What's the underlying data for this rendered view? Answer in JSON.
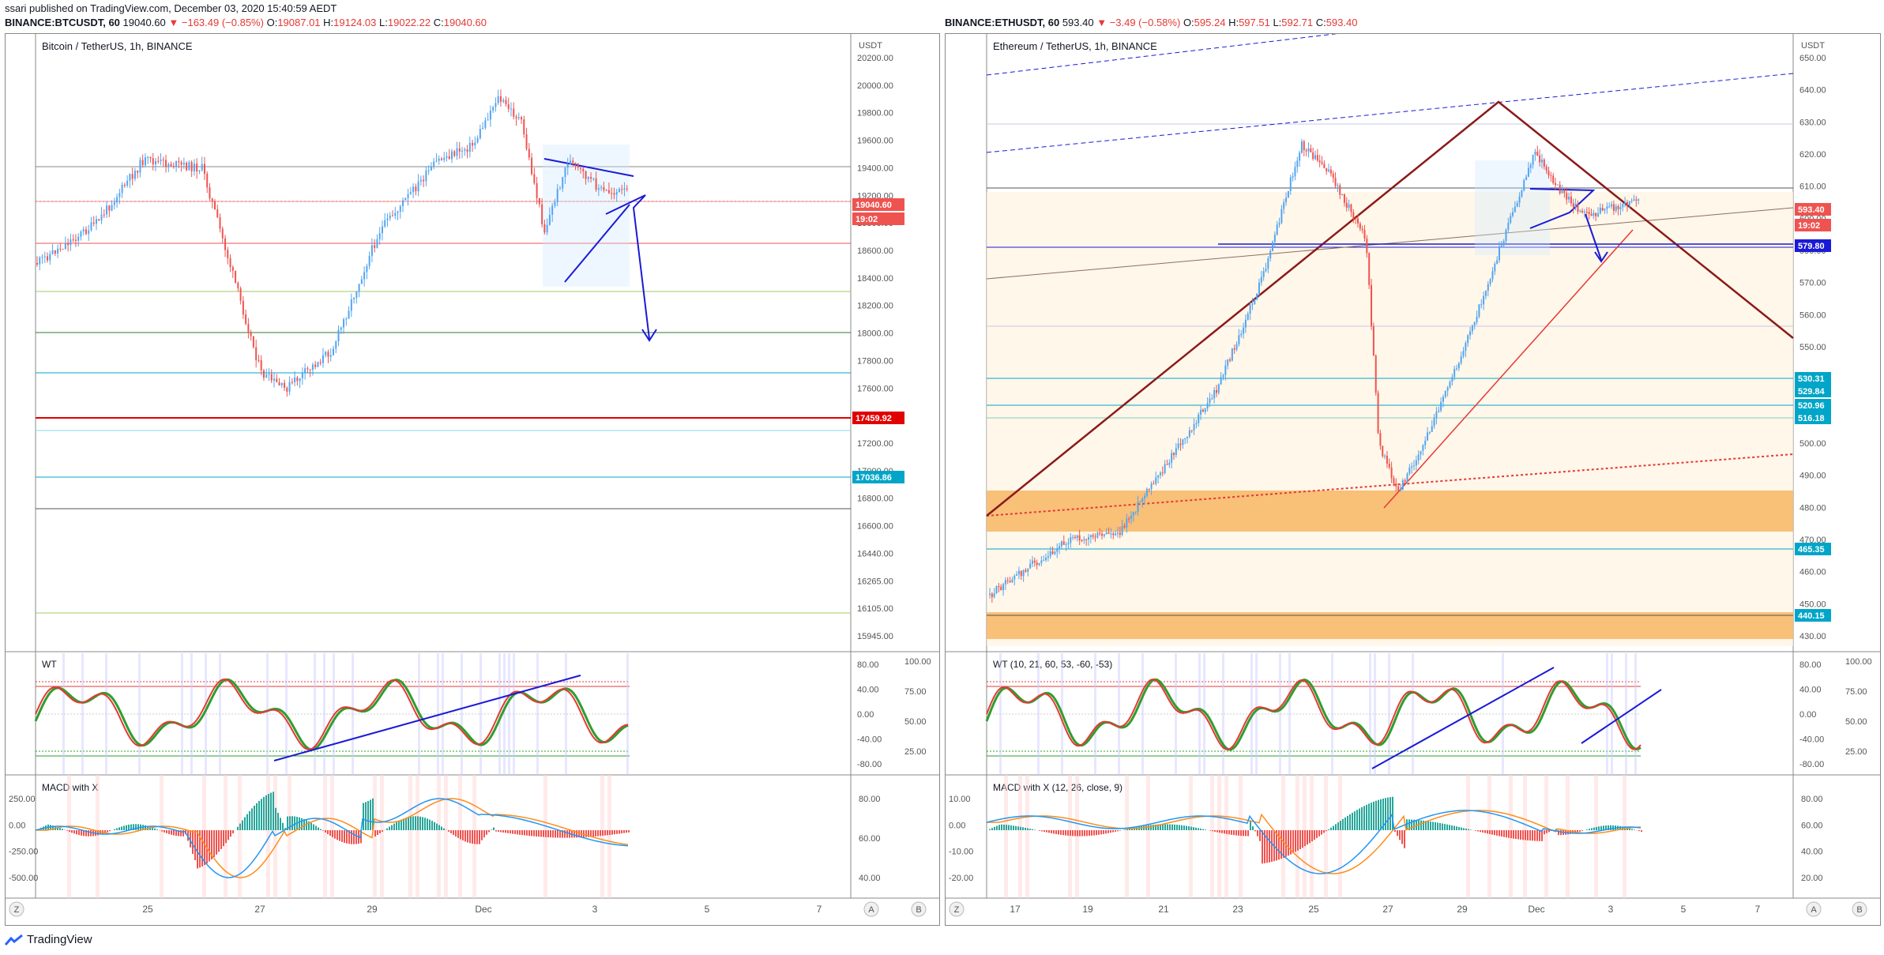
{
  "header": {
    "publisher_line": "ssari published on TradingView.com, December 03, 2020 15:40:59 AEDT"
  },
  "left": {
    "symbol": "BINANCE:BTCUSDT, 60",
    "last": "19040.60",
    "change": "▼ −163.49 (−0.85%)",
    "o_label": "O:",
    "o": "19087.01",
    "h_label": "H:",
    "h": "19124.03",
    "l_label": "L:",
    "l": "19022.22",
    "c_label": "C:",
    "c": "19040.60",
    "title": "Bitcoin / TetherUS, 1h, BINANCE",
    "unit": "USDT",
    "price_ticks": [
      "20200.00",
      "20000.00",
      "19800.00",
      "19600.00",
      "19400.00",
      "19200.00",
      "18800.00",
      "18600.00",
      "18400.00",
      "18200.00",
      "18000.00",
      "17800.00",
      "17600.00",
      "17400.00",
      "17200.00",
      "17000.00",
      "16800.00",
      "16600.00",
      "16440.00",
      "16265.00",
      "16105.00",
      "15945.00"
    ],
    "price_badges": [
      {
        "label": "19040.60",
        "color": "#ef5350"
      },
      {
        "label": "19:02",
        "color": "#ef5350"
      },
      {
        "label": "17459.92",
        "color": "#e00000"
      },
      {
        "label": "17036.86",
        "color": "#00a5c8"
      }
    ],
    "date_ticks": [
      "25",
      "27",
      "29",
      "Dec",
      "3",
      "5",
      "7"
    ],
    "wt_title": "WT",
    "wt_ticks_right": [
      "100.00",
      "75.00",
      "50.00",
      "25.00"
    ],
    "wt_ticks_left": [
      "80.00",
      "40.00",
      "0.00",
      "-40.00",
      "-80.00"
    ],
    "macd_title": "MACD with X",
    "macd_ticks_left": [
      "250.00",
      "0.00",
      "-250.00",
      "-500.00"
    ],
    "macd_ticks_right": [
      "80.00",
      "60.00",
      "40.00"
    ]
  },
  "right": {
    "symbol": "BINANCE:ETHUSDT, 60",
    "last": "593.40",
    "change": "▼ −3.49 (−0.58%)",
    "o_label": "O:",
    "o": "595.24",
    "h_label": "H:",
    "h": "597.51",
    "l_label": "L:",
    "l": "592.71",
    "c_label": "C:",
    "c": "593.40",
    "title": "Ethereum / TetherUS, 1h, BINANCE",
    "unit": "USDT",
    "price_ticks": [
      "650.00",
      "640.00",
      "630.00",
      "620.00",
      "610.00",
      "600.00",
      "590.00",
      "570.00",
      "560.00",
      "550.00",
      "520.00",
      "510.00",
      "500.00",
      "490.00",
      "480.00",
      "470.00",
      "460.00",
      "450.00",
      "430.00"
    ],
    "price_badges": [
      {
        "label": "593.40",
        "color": "#ef5350"
      },
      {
        "label": "19:02",
        "color": "#ef5350"
      },
      {
        "label": "579.80",
        "color": "#1a1ad6"
      },
      {
        "label": "530.31",
        "color": "#00a5c8"
      },
      {
        "label": "529.84",
        "color": "#00a5c8"
      },
      {
        "label": "520.96",
        "color": "#00a5c8"
      },
      {
        "label": "516.18",
        "color": "#00a5c8"
      },
      {
        "label": "465.35",
        "color": "#00a5c8"
      },
      {
        "label": "440.15",
        "color": "#00a5c8"
      }
    ],
    "date_ticks": [
      "17",
      "19",
      "21",
      "23",
      "25",
      "27",
      "29",
      "Dec",
      "3",
      "5",
      "7"
    ],
    "wt_title": "WT (10, 21, 60, 53, -60, -53)",
    "wt_ticks_right": [
      "100.00",
      "75.00",
      "50.00",
      "25.00"
    ],
    "wt_ticks_left": [
      "80.00",
      "40.00",
      "0.00",
      "-40.00",
      "-80.00"
    ],
    "macd_title": "MACD with X (12, 26, close, 9)",
    "macd_ticks_left": [
      "10.00",
      "0.00",
      "-10.00",
      "-20.00"
    ],
    "macd_ticks_right": [
      "80.00",
      "60.00",
      "40.00",
      "20.00"
    ]
  },
  "axis_buttons": {
    "z": "Z",
    "a": "A",
    "b": "B"
  },
  "footer": {
    "brand": "TradingView"
  },
  "colors": {
    "up": "#53a5f0",
    "down": "#ef5350",
    "trend": "#1a1ad6",
    "wt_green": "#2e9e2e",
    "wt_red": "#e53935",
    "zone": "#f8b96c"
  }
}
